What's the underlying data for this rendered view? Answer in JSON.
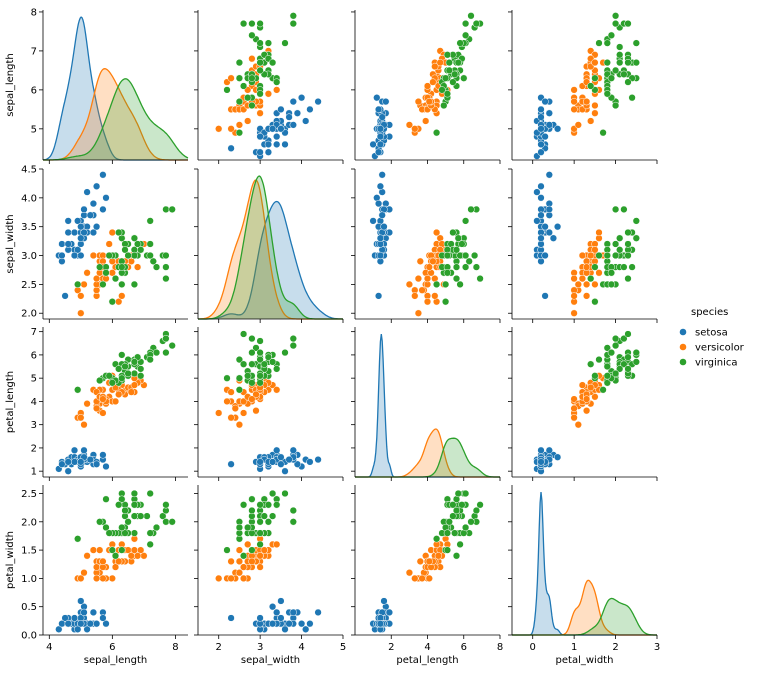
{
  "legend": {
    "title": "species",
    "entries": [
      {
        "name": "setosa",
        "color": "#1f77b4"
      },
      {
        "name": "versicolor",
        "color": "#ff7f0e"
      },
      {
        "name": "virginica",
        "color": "#2ca02c"
      }
    ]
  },
  "chart_data": {
    "type": "scatter",
    "layout": "pairplot",
    "variables": [
      "sepal_length",
      "sepal_width",
      "petal_length",
      "petal_width"
    ],
    "diagonal_kind": "kde",
    "grid": false,
    "legend_position": "right",
    "axes": {
      "sepal_length": {
        "range": [
          3.8,
          8.4
        ],
        "ticks": [
          4,
          6,
          8
        ]
      },
      "sepal_width": {
        "range": [
          1.5,
          5.0
        ],
        "ticks": [
          2,
          3,
          4,
          5
        ]
      },
      "petal_length": {
        "range": [
          0,
          8.0
        ],
        "ticks": [
          2,
          4,
          6,
          8
        ]
      },
      "petal_width": {
        "range": [
          -0.5,
          3.0
        ],
        "ticks": [
          0,
          1,
          2,
          3
        ]
      }
    },
    "row_axes": {
      "sepal_length": {
        "range": [
          4.2,
          8.05
        ],
        "ticks": [
          5,
          6,
          7,
          8
        ]
      },
      "sepal_width": {
        "range": [
          1.9,
          4.5
        ],
        "ticks": [
          2.0,
          2.5,
          3.0,
          3.5,
          4.0,
          4.5
        ]
      },
      "petal_length": {
        "range": [
          0.75,
          7.2
        ],
        "ticks": [
          1,
          2,
          3,
          4,
          5,
          6,
          7
        ]
      },
      "petal_width": {
        "range": [
          0.0,
          2.65
        ],
        "ticks": [
          0.0,
          0.5,
          1.0,
          1.5,
          2.0,
          2.5
        ]
      }
    },
    "series": [
      {
        "name": "setosa",
        "color": "#1f77b4",
        "points": [
          [
            5.1,
            3.5,
            1.4,
            0.2
          ],
          [
            4.9,
            3.0,
            1.4,
            0.2
          ],
          [
            4.7,
            3.2,
            1.3,
            0.2
          ],
          [
            4.6,
            3.1,
            1.5,
            0.2
          ],
          [
            5.0,
            3.6,
            1.4,
            0.2
          ],
          [
            5.4,
            3.9,
            1.7,
            0.4
          ],
          [
            4.6,
            3.4,
            1.4,
            0.3
          ],
          [
            5.0,
            3.4,
            1.5,
            0.2
          ],
          [
            4.4,
            2.9,
            1.4,
            0.2
          ],
          [
            4.9,
            3.1,
            1.5,
            0.1
          ],
          [
            5.4,
            3.7,
            1.5,
            0.2
          ],
          [
            4.8,
            3.4,
            1.6,
            0.2
          ],
          [
            4.8,
            3.0,
            1.4,
            0.1
          ],
          [
            4.3,
            3.0,
            1.1,
            0.1
          ],
          [
            5.8,
            4.0,
            1.2,
            0.2
          ],
          [
            5.7,
            4.4,
            1.5,
            0.4
          ],
          [
            5.4,
            3.9,
            1.3,
            0.4
          ],
          [
            5.1,
            3.5,
            1.4,
            0.3
          ],
          [
            5.7,
            3.8,
            1.7,
            0.3
          ],
          [
            5.1,
            3.8,
            1.5,
            0.3
          ],
          [
            5.4,
            3.4,
            1.7,
            0.2
          ],
          [
            5.1,
            3.7,
            1.5,
            0.4
          ],
          [
            4.6,
            3.6,
            1.0,
            0.2
          ],
          [
            5.1,
            3.3,
            1.7,
            0.5
          ],
          [
            4.8,
            3.4,
            1.9,
            0.2
          ],
          [
            5.0,
            3.0,
            1.6,
            0.2
          ],
          [
            5.0,
            3.4,
            1.6,
            0.4
          ],
          [
            5.2,
            3.5,
            1.5,
            0.2
          ],
          [
            5.2,
            3.4,
            1.4,
            0.2
          ],
          [
            4.7,
            3.2,
            1.6,
            0.2
          ],
          [
            4.8,
            3.1,
            1.6,
            0.2
          ],
          [
            5.4,
            3.4,
            1.5,
            0.4
          ],
          [
            5.2,
            4.1,
            1.5,
            0.1
          ],
          [
            5.5,
            4.2,
            1.4,
            0.2
          ],
          [
            4.9,
            3.1,
            1.5,
            0.2
          ],
          [
            5.0,
            3.2,
            1.2,
            0.2
          ],
          [
            5.5,
            3.5,
            1.3,
            0.2
          ],
          [
            4.9,
            3.6,
            1.4,
            0.1
          ],
          [
            4.4,
            3.0,
            1.3,
            0.2
          ],
          [
            5.1,
            3.4,
            1.5,
            0.2
          ],
          [
            5.0,
            3.5,
            1.3,
            0.3
          ],
          [
            4.5,
            2.3,
            1.3,
            0.3
          ],
          [
            4.4,
            3.2,
            1.3,
            0.2
          ],
          [
            5.0,
            3.5,
            1.6,
            0.6
          ],
          [
            5.1,
            3.8,
            1.9,
            0.4
          ],
          [
            4.8,
            3.0,
            1.4,
            0.3
          ],
          [
            5.1,
            3.8,
            1.6,
            0.2
          ],
          [
            4.6,
            3.2,
            1.4,
            0.2
          ],
          [
            5.3,
            3.7,
            1.5,
            0.2
          ],
          [
            5.0,
            3.3,
            1.4,
            0.2
          ]
        ]
      },
      {
        "name": "versicolor",
        "color": "#ff7f0e",
        "points": [
          [
            7.0,
            3.2,
            4.7,
            1.4
          ],
          [
            6.4,
            3.2,
            4.5,
            1.5
          ],
          [
            6.9,
            3.1,
            4.9,
            1.5
          ],
          [
            5.5,
            2.3,
            4.0,
            1.3
          ],
          [
            6.5,
            2.8,
            4.6,
            1.5
          ],
          [
            5.7,
            2.8,
            4.5,
            1.3
          ],
          [
            6.3,
            3.3,
            4.7,
            1.6
          ],
          [
            4.9,
            2.4,
            3.3,
            1.0
          ],
          [
            6.6,
            2.9,
            4.6,
            1.3
          ],
          [
            5.2,
            2.7,
            3.9,
            1.4
          ],
          [
            5.0,
            2.0,
            3.5,
            1.0
          ],
          [
            5.9,
            3.0,
            4.2,
            1.5
          ],
          [
            6.0,
            2.2,
            4.0,
            1.0
          ],
          [
            6.1,
            2.9,
            4.7,
            1.4
          ],
          [
            5.6,
            2.9,
            3.6,
            1.3
          ],
          [
            6.7,
            3.1,
            4.4,
            1.4
          ],
          [
            5.6,
            3.0,
            4.5,
            1.5
          ],
          [
            5.8,
            2.7,
            4.1,
            1.0
          ],
          [
            6.2,
            2.2,
            4.5,
            1.5
          ],
          [
            5.6,
            2.5,
            3.9,
            1.1
          ],
          [
            5.9,
            3.2,
            4.8,
            1.8
          ],
          [
            6.1,
            2.8,
            4.0,
            1.3
          ],
          [
            6.3,
            2.5,
            4.9,
            1.5
          ],
          [
            6.1,
            2.8,
            4.7,
            1.2
          ],
          [
            6.4,
            2.9,
            4.3,
            1.3
          ],
          [
            6.6,
            3.0,
            4.4,
            1.4
          ],
          [
            6.8,
            2.8,
            4.8,
            1.4
          ],
          [
            6.7,
            3.0,
            5.0,
            1.7
          ],
          [
            6.0,
            2.9,
            4.5,
            1.5
          ],
          [
            5.7,
            2.6,
            3.5,
            1.0
          ],
          [
            5.5,
            2.4,
            3.8,
            1.1
          ],
          [
            5.5,
            2.4,
            3.7,
            1.0
          ],
          [
            5.8,
            2.7,
            3.9,
            1.2
          ],
          [
            6.0,
            2.7,
            5.1,
            1.6
          ],
          [
            5.4,
            3.0,
            4.5,
            1.5
          ],
          [
            6.0,
            3.4,
            4.5,
            1.6
          ],
          [
            6.7,
            3.1,
            4.7,
            1.5
          ],
          [
            6.3,
            2.3,
            4.4,
            1.3
          ],
          [
            5.6,
            3.0,
            4.1,
            1.3
          ],
          [
            5.5,
            2.5,
            4.0,
            1.3
          ],
          [
            5.5,
            2.6,
            4.4,
            1.2
          ],
          [
            6.1,
            3.0,
            4.6,
            1.4
          ],
          [
            5.8,
            2.6,
            4.0,
            1.2
          ],
          [
            5.0,
            2.3,
            3.3,
            1.0
          ],
          [
            5.6,
            2.7,
            4.2,
            1.3
          ],
          [
            5.7,
            3.0,
            4.2,
            1.2
          ],
          [
            5.7,
            2.9,
            4.2,
            1.3
          ],
          [
            6.2,
            2.9,
            4.3,
            1.3
          ],
          [
            5.1,
            2.5,
            3.0,
            1.1
          ],
          [
            5.7,
            2.8,
            4.1,
            1.3
          ]
        ]
      },
      {
        "name": "virginica",
        "color": "#2ca02c",
        "points": [
          [
            6.3,
            3.3,
            6.0,
            2.5
          ],
          [
            5.8,
            2.7,
            5.1,
            1.9
          ],
          [
            7.1,
            3.0,
            5.9,
            2.1
          ],
          [
            6.3,
            2.9,
            5.6,
            1.8
          ],
          [
            6.5,
            3.0,
            5.8,
            2.2
          ],
          [
            7.6,
            3.0,
            6.6,
            2.1
          ],
          [
            4.9,
            2.5,
            4.5,
            1.7
          ],
          [
            7.3,
            2.9,
            6.3,
            1.8
          ],
          [
            6.7,
            2.5,
            5.8,
            1.8
          ],
          [
            7.2,
            3.6,
            6.1,
            2.5
          ],
          [
            6.5,
            3.2,
            5.1,
            2.0
          ],
          [
            6.4,
            2.7,
            5.3,
            1.9
          ],
          [
            6.8,
            3.0,
            5.5,
            2.1
          ],
          [
            5.7,
            2.5,
            5.0,
            2.0
          ],
          [
            5.8,
            2.8,
            5.1,
            2.4
          ],
          [
            6.4,
            3.2,
            5.3,
            2.3
          ],
          [
            6.5,
            3.0,
            5.5,
            1.8
          ],
          [
            7.7,
            3.8,
            6.7,
            2.2
          ],
          [
            7.7,
            2.6,
            6.9,
            2.3
          ],
          [
            6.0,
            2.2,
            5.0,
            1.5
          ],
          [
            6.9,
            3.2,
            5.7,
            2.3
          ],
          [
            5.6,
            2.8,
            4.9,
            2.0
          ],
          [
            7.7,
            2.8,
            6.7,
            2.0
          ],
          [
            6.3,
            2.7,
            4.9,
            1.8
          ],
          [
            6.7,
            3.3,
            5.7,
            2.1
          ],
          [
            7.2,
            3.2,
            6.0,
            1.8
          ],
          [
            6.2,
            2.8,
            4.8,
            1.8
          ],
          [
            6.1,
            3.0,
            4.9,
            1.8
          ],
          [
            6.4,
            2.8,
            5.6,
            2.1
          ],
          [
            7.2,
            3.0,
            5.8,
            1.6
          ],
          [
            7.4,
            2.8,
            6.1,
            1.9
          ],
          [
            7.9,
            3.8,
            6.4,
            2.0
          ],
          [
            6.4,
            2.8,
            5.6,
            2.2
          ],
          [
            6.3,
            2.8,
            5.1,
            1.5
          ],
          [
            6.1,
            2.6,
            5.6,
            1.4
          ],
          [
            7.7,
            3.0,
            6.1,
            2.3
          ],
          [
            6.3,
            3.4,
            5.6,
            2.4
          ],
          [
            6.4,
            3.1,
            5.5,
            1.8
          ],
          [
            6.0,
            3.0,
            4.8,
            1.8
          ],
          [
            6.9,
            3.1,
            5.4,
            2.1
          ],
          [
            6.7,
            3.1,
            5.6,
            2.4
          ],
          [
            6.9,
            3.1,
            5.1,
            2.3
          ],
          [
            5.8,
            2.7,
            5.1,
            1.9
          ],
          [
            6.8,
            3.2,
            5.9,
            2.3
          ],
          [
            6.7,
            3.3,
            5.7,
            2.5
          ],
          [
            6.7,
            3.0,
            5.2,
            2.3
          ],
          [
            6.3,
            2.5,
            5.0,
            1.9
          ],
          [
            6.5,
            3.0,
            5.2,
            2.0
          ],
          [
            6.2,
            3.4,
            5.4,
            2.3
          ],
          [
            5.9,
            3.0,
            5.1,
            1.8
          ]
        ]
      }
    ]
  }
}
